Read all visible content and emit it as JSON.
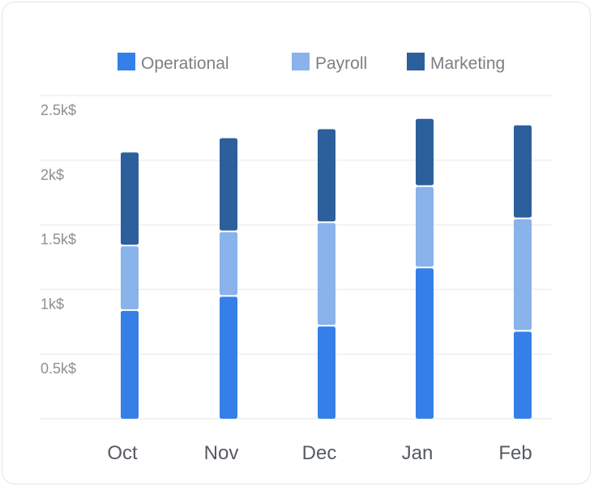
{
  "chart_data": {
    "type": "bar",
    "stacked": true,
    "categories": [
      "Oct",
      "Nov",
      "Dec",
      "Jan",
      "Feb"
    ],
    "series": [
      {
        "name": "Operational",
        "color": "#3580e8",
        "values": [
          840,
          950,
          720,
          1170,
          680
        ]
      },
      {
        "name": "Payroll",
        "color": "#89b3ea",
        "values": [
          500,
          500,
          800,
          630,
          870
        ]
      },
      {
        "name": "Marketing",
        "color": "#2c609c",
        "values": [
          720,
          720,
          720,
          520,
          720
        ]
      }
    ],
    "y_ticks": [
      {
        "value": 500,
        "label": "0.5k$"
      },
      {
        "value": 1000,
        "label": "1k$"
      },
      {
        "value": 1500,
        "label": "1.5k$"
      },
      {
        "value": 2000,
        "label": "2k$"
      },
      {
        "value": 2500,
        "label": "2.5k$"
      }
    ],
    "ylim": [
      0,
      2500
    ],
    "grid": true,
    "legend_position": "top",
    "title": "",
    "xlabel": "",
    "ylabel": ""
  }
}
